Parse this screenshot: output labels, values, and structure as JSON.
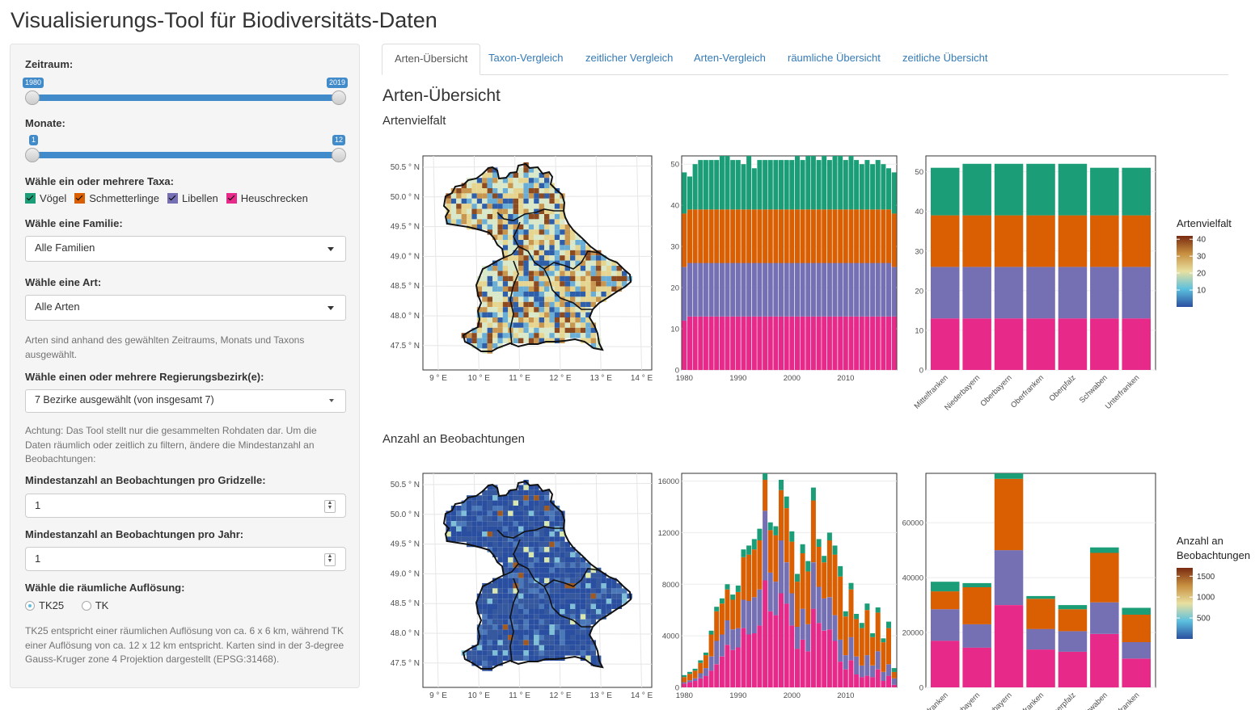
{
  "app_title": "Visualisierungs-Tool für Biodiversitäts-Daten",
  "sidebar": {
    "zeitraum_label": "Zeitraum:",
    "zeitraum_min": "1980",
    "zeitraum_max": "2019",
    "monate_label": "Monate:",
    "monate_min": "1",
    "monate_max": "12",
    "taxa_label": "Wähle ein oder mehrere Taxa:",
    "taxa": [
      {
        "label": "Vögel",
        "color": "#1b9e77"
      },
      {
        "label": "Schmetterlinge",
        "color": "#d95f02"
      },
      {
        "label": "Libellen",
        "color": "#7570b3"
      },
      {
        "label": "Heuschrecken",
        "color": "#e7298a"
      }
    ],
    "familie_label": "Wähle eine Familie:",
    "familie_value": "Alle Familien",
    "art_label": "Wähle eine Art:",
    "art_value": "Alle Arten",
    "art_help": "Arten sind anhand des gewählten Zeitraums, Monats und Taxons ausgewählt.",
    "bezirk_label": "Wähle einen oder mehrere Regierungsbezirk(e):",
    "bezirk_value": "7 Bezirke ausgewählt (von insgesamt 7)",
    "achtung_help": "Achtung: Das Tool stellt nur die gesammelten Rohdaten dar. Um die Daten räumlich oder zeitlich zu filtern, ändere die Mindestanzahl an Beobachtungen:",
    "min_grid_label": "Mindestanzahl an Beobachtungen pro Gridzelle:",
    "min_grid_value": "1",
    "min_jahr_label": "Mindestanzahl an Beobachtungen pro Jahr:",
    "min_jahr_value": "1",
    "aufl_label": "Wähle die räumliche Auflösung:",
    "aufl_options": [
      "TK25",
      "TK"
    ],
    "aufl_help": "TK25 entspricht einer räumlichen Auflösung von ca. 6 x 6 km, während TK einer Auflösung von ca. 12 x 12 km entspricht. Karten sind in der 3-degree Gauss-Kruger zone 4 Projektion dargestellt (EPSG:31468)."
  },
  "tabs": [
    "Arten-Übersicht",
    "Taxon-Vergleich",
    "zeitlicher Vergleich",
    "Arten-Vergleich",
    "räumliche Übersicht",
    "zeitliche Übersicht"
  ],
  "main": {
    "title": "Arten-Übersicht",
    "section1": "Artenvielfalt",
    "section2": "Anzahl an Beobachtungen"
  },
  "chart_data": [
    {
      "type": "heatmap",
      "title": "",
      "x_ticks": [
        "9 ° E",
        "10 ° E",
        "11 ° E",
        "12 ° E",
        "13 ° E",
        "14 ° E"
      ],
      "y_ticks": [
        "50.5 ° N",
        "50.0 ° N",
        "49.5 ° N",
        "49.0 ° N",
        "48.5 ° N",
        "48.0 ° N",
        "47.5 ° N"
      ],
      "legend_title": "Artenvielfalt",
      "legend_ticks": [
        10,
        20,
        30,
        40
      ],
      "colors": [
        "#2b4fa0",
        "#5bc0de",
        "#e8e0a0",
        "#c89040",
        "#7a2a10"
      ]
    },
    {
      "type": "bar",
      "stacked": true,
      "xlim": [
        1979.5,
        2019.5
      ],
      "x_ticks": [
        1980,
        1990,
        2000,
        2010
      ],
      "ylim": [
        0,
        52
      ],
      "y_ticks": [
        0,
        10,
        20,
        30,
        40,
        50
      ],
      "series": [
        {
          "color": "#e7298a",
          "values": [
            12,
            13,
            13,
            13,
            13,
            13,
            13,
            13,
            13,
            13,
            13,
            13,
            13,
            13,
            13,
            13,
            13,
            13,
            13,
            13,
            13,
            13,
            13,
            13,
            13,
            13,
            13,
            13,
            13,
            13,
            13,
            13,
            13,
            13,
            13,
            13,
            13,
            13,
            13,
            13
          ]
        },
        {
          "color": "#7570b3",
          "values": [
            13,
            13,
            13,
            13,
            13,
            13,
            13,
            13,
            13,
            13,
            13,
            13,
            13,
            13,
            13,
            13,
            13,
            13,
            13,
            13,
            13,
            13,
            13,
            13,
            13,
            13,
            13,
            13,
            13,
            13,
            13,
            13,
            13,
            13,
            13,
            13,
            13,
            13,
            13,
            12
          ]
        },
        {
          "color": "#d95f02",
          "values": [
            13,
            13,
            13,
            13,
            13,
            13,
            13,
            13,
            13,
            13,
            13,
            13,
            13,
            13,
            13,
            13,
            13,
            13,
            13,
            13,
            13,
            13,
            13,
            13,
            13,
            13,
            13,
            13,
            13,
            13,
            13,
            13,
            13,
            13,
            13,
            13,
            13,
            13,
            13,
            13
          ]
        },
        {
          "color": "#1b9e77",
          "values": [
            10,
            8,
            11,
            12,
            12,
            12,
            12,
            13,
            13,
            12,
            12,
            11,
            13,
            10,
            12,
            12,
            12,
            12,
            12,
            12,
            12,
            13,
            12,
            13,
            13,
            12,
            13,
            12,
            13,
            13,
            12,
            13,
            12,
            11,
            12,
            11,
            12,
            11,
            10,
            10
          ]
        }
      ]
    },
    {
      "type": "bar",
      "stacked": true,
      "categories": [
        "Mittelfranken",
        "Niederbayern",
        "Oberbayern",
        "Oberfranken",
        "Oberpfalz",
        "Schwaben",
        "Unterfranken"
      ],
      "ylim": [
        0,
        54
      ],
      "y_ticks": [
        0,
        10,
        20,
        30,
        40,
        50
      ],
      "series": [
        {
          "color": "#e7298a",
          "values": [
            13,
            13,
            13,
            13,
            13,
            13,
            13
          ]
        },
        {
          "color": "#7570b3",
          "values": [
            13,
            13,
            13,
            13,
            13,
            13,
            13
          ]
        },
        {
          "color": "#d95f02",
          "values": [
            13,
            13,
            13,
            13,
            13,
            13,
            13
          ]
        },
        {
          "color": "#1b9e77",
          "values": [
            12,
            13,
            13,
            13,
            13,
            12,
            12
          ]
        }
      ]
    },
    {
      "type": "heatmap",
      "title": "",
      "x_ticks": [
        "9 ° E",
        "10 ° E",
        "11 ° E",
        "12 ° E",
        "13 ° E",
        "14 ° E"
      ],
      "y_ticks": [
        "50.5 ° N",
        "50.0 ° N",
        "49.5 ° N",
        "49.0 ° N",
        "48.5 ° N",
        "48.0 ° N",
        "47.5 ° N"
      ],
      "legend_title": "Anzahl an Beobachtungen",
      "legend_ticks": [
        500,
        1000,
        1500
      ],
      "colors": [
        "#2b4fa0",
        "#5bc0de",
        "#e8e0a0",
        "#c89040",
        "#7a2a10"
      ]
    },
    {
      "type": "bar",
      "stacked": true,
      "xlim": [
        1979.5,
        2019.5
      ],
      "x_ticks": [
        1980,
        1990,
        2000,
        2010
      ],
      "ylim": [
        0,
        16600
      ],
      "y_ticks": [
        0,
        4000,
        8000,
        12000,
        16000
      ],
      "series": [
        {
          "color": "#e7298a",
          "values": [
            300,
            400,
            500,
            700,
            900,
            1300,
            1800,
            2400,
            3300,
            2900,
            3100,
            4600,
            4100,
            4200,
            4800,
            8300,
            5900,
            5600,
            7300,
            6500,
            4800,
            3000,
            3700,
            2800,
            6100,
            5000,
            4400,
            4500,
            3600,
            2000,
            1400,
            2100,
            1000,
            800,
            900,
            800,
            1400,
            500,
            900,
            200
          ]
        },
        {
          "color": "#7570b3",
          "values": [
            100,
            150,
            200,
            400,
            600,
            1100,
            1800,
            1700,
            1900,
            1600,
            1500,
            2200,
            2600,
            2800,
            2800,
            5400,
            3000,
            2600,
            4100,
            3200,
            2500,
            1700,
            2400,
            2100,
            3600,
            2800,
            2500,
            2500,
            2000,
            1700,
            1100,
            1800,
            1400,
            900,
            1600,
            900,
            1400,
            700,
            900,
            500
          ]
        },
        {
          "color": "#d95f02",
          "values": [
            400,
            500,
            600,
            800,
            1000,
            1700,
            2300,
            2400,
            2400,
            2300,
            2800,
            3300,
            3600,
            3700,
            3800,
            2400,
            3300,
            3600,
            3900,
            4200,
            4000,
            3500,
            4300,
            4100,
            4800,
            3100,
            2800,
            4400,
            4700,
            4900,
            3000,
            3700,
            2900,
            2900,
            3500,
            2200,
            3000,
            2300,
            2800,
            500
          ]
        },
        {
          "color": "#1b9e77",
          "values": [
            150,
            150,
            150,
            200,
            200,
            300,
            350,
            400,
            400,
            400,
            500,
            600,
            700,
            800,
            900,
            500,
            600,
            700,
            800,
            900,
            800,
            600,
            700,
            800,
            1000,
            600,
            500,
            600,
            700,
            800,
            400,
            500,
            400,
            400,
            500,
            300,
            400,
            300,
            500,
            300
          ]
        }
      ]
    },
    {
      "type": "bar",
      "stacked": true,
      "categories": [
        "Mittelfranken",
        "Niederbayern",
        "Oberbayern",
        "Oberfranken",
        "Oberpfalz",
        "Schwaben",
        "Unterfranken"
      ],
      "ylim": [
        0,
        78000
      ],
      "y_ticks": [
        0,
        20000,
        40000,
        60000
      ],
      "series": [
        {
          "color": "#e7298a",
          "values": [
            17000,
            14500,
            30000,
            13800,
            13000,
            19500,
            10500
          ]
        },
        {
          "color": "#7570b3",
          "values": [
            11500,
            8500,
            20000,
            7500,
            7500,
            11500,
            6000
          ]
        },
        {
          "color": "#d95f02",
          "values": [
            6500,
            13500,
            26000,
            11000,
            8000,
            18000,
            10000
          ]
        },
        {
          "color": "#1b9e77",
          "values": [
            3500,
            1500,
            2000,
            1000,
            1500,
            2000,
            2500
          ]
        }
      ],
      "legend_title": "Anzahl an Beobachtungen",
      "legend_ticks": [
        500,
        1000,
        1500
      ]
    }
  ]
}
